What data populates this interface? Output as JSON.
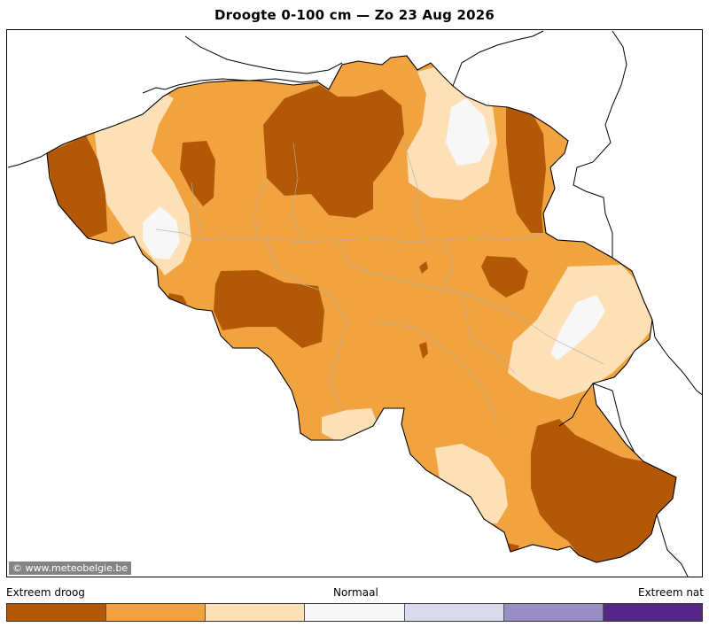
{
  "header": {
    "title": "Droogte 0-100 cm  —  Zo 23 Aug 2026"
  },
  "map": {
    "credit": "© www.meteobelgie.be",
    "colors": {
      "extreme_dry": "#b35806",
      "dry": "#f1a340",
      "slightly_dry": "#fee0b6",
      "normal": "#f7f7f7"
    }
  },
  "legend": {
    "left_label": "Extreem droog",
    "center_label": "Normaal",
    "right_label": "Extreem nat",
    "colors": [
      "#b35806",
      "#f1a340",
      "#fee0b6",
      "#f7f7f7",
      "#d8daeb",
      "#998ec3",
      "#542788"
    ]
  }
}
